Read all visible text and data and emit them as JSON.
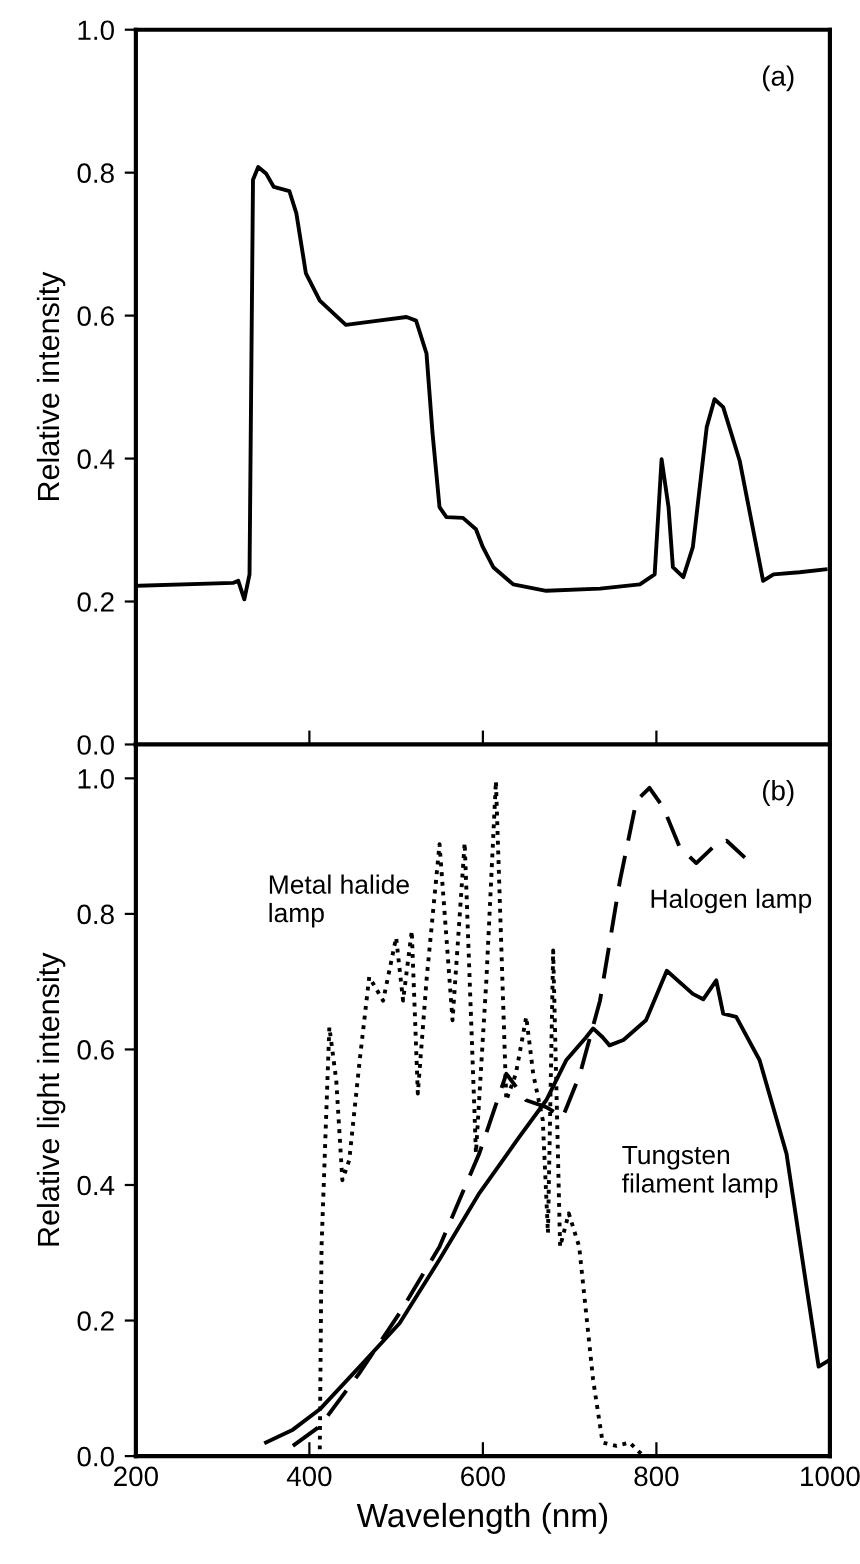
{
  "chart_data": [
    {
      "type": "line",
      "ylabel": "Relative intensity",
      "xlim": [
        200,
        1000
      ],
      "ylim": [
        0,
        1.0
      ],
      "xticks": [
        {
          "value": 400,
          "label": null
        },
        {
          "value": 600,
          "label": null
        },
        {
          "value": 800,
          "label": null
        }
      ],
      "yticks": [
        {
          "value": 0,
          "label": "0.0"
        },
        {
          "value": 0.2,
          "label": "0.2"
        },
        {
          "value": 0.4,
          "label": "0.4"
        },
        {
          "value": 0.6,
          "label": "0.6"
        },
        {
          "value": 0.8,
          "label": "0.8"
        },
        {
          "value": 1.0,
          "label": "1.0"
        }
      ],
      "tick_labels": "y",
      "grid": false,
      "legend": false,
      "annotations": [
        "(a)"
      ],
      "series": [
        {
          "color": "#000000",
          "line_style": "solid",
          "x": [
            204,
            312,
            318,
            325,
            331,
            335,
            341,
            350,
            359,
            377,
            385,
            396,
            412,
            442,
            473,
            512,
            523,
            535,
            542,
            550,
            558,
            577,
            592,
            600,
            612,
            635,
            673,
            735,
            781,
            798,
            806,
            814,
            819,
            831,
            842,
            858,
            867,
            877,
            896,
            923,
            935,
            965,
            995
          ],
          "values": [
            0.222,
            0.226,
            0.229,
            0.203,
            0.238,
            0.79,
            0.808,
            0.799,
            0.78,
            0.774,
            0.743,
            0.659,
            0.621,
            0.587,
            0.592,
            0.598,
            0.593,
            0.547,
            0.435,
            0.332,
            0.318,
            0.317,
            0.301,
            0.276,
            0.248,
            0.224,
            0.215,
            0.218,
            0.224,
            0.238,
            0.399,
            0.332,
            0.248,
            0.234,
            0.276,
            0.444,
            0.483,
            0.472,
            0.397,
            0.229,
            0.238,
            0.241,
            0.245
          ]
        }
      ]
    },
    {
      "type": "line",
      "xlabel": "Wavelength (nm)",
      "ylabel": "Relative light intensity",
      "xlim": [
        200,
        1000
      ],
      "ylim": [
        0,
        1.05
      ],
      "xticks": [
        200,
        400,
        600,
        800,
        1000
      ],
      "yticks": [
        {
          "value": 0,
          "label": "0.0"
        },
        {
          "value": 0.2,
          "label": "0.2"
        },
        {
          "value": 0.4,
          "label": "0.4"
        },
        {
          "value": 0.6,
          "label": "0.6"
        },
        {
          "value": 0.8,
          "label": "0.8"
        },
        {
          "value": 1.0,
          "label": "1.0"
        }
      ],
      "grid": false,
      "legend": false,
      "annotations": [
        "(b)"
      ],
      "series": [
        {
          "name": "Tungsten\nfilament lamp",
          "color": "#000000",
          "line_style": "solid",
          "x": [
            350,
            381,
            412,
            458,
            504,
            550,
            596,
            642,
            673,
            696,
            719,
            727,
            738,
            746,
            762,
            788,
            812,
            842,
            854,
            869,
            877,
            892,
            919,
            950,
            973,
            987,
            1000
          ],
          "values": [
            0.02,
            0.039,
            0.069,
            0.132,
            0.196,
            0.29,
            0.388,
            0.471,
            0.525,
            0.584,
            0.618,
            0.631,
            0.618,
            0.606,
            0.614,
            0.643,
            0.716,
            0.682,
            0.674,
            0.702,
            0.653,
            0.648,
            0.584,
            0.446,
            0.25,
            0.132,
            0.142
          ]
        },
        {
          "name": "Halogen lamp",
          "color": "#000000",
          "line_style": "dashed",
          "x": [
            381,
            412,
            458,
            504,
            550,
            596,
            627,
            650,
            673,
            692,
            712,
            735,
            758,
            777,
            792,
            808,
            827,
            846,
            865,
            881,
            902
          ],
          "values": [
            0.015,
            0.044,
            0.123,
            0.211,
            0.309,
            0.447,
            0.564,
            0.525,
            0.515,
            0.5,
            0.564,
            0.672,
            0.849,
            0.967,
            0.986,
            0.957,
            0.898,
            0.875,
            0.898,
            0.908,
            0.883
          ]
        },
        {
          "name": "Metal halide\nlamp",
          "color": "#000000",
          "line_style": "dotted",
          "x": [
            412,
            414,
            423,
            431,
            438,
            446,
            458,
            469,
            485,
            500,
            508,
            518,
            525,
            535,
            550,
            565,
            579,
            592,
            604,
            615,
            627,
            638,
            650,
            658,
            669,
            675,
            681,
            689,
            699,
            711,
            727,
            738,
            754,
            769,
            781,
            785
          ],
          "values": [
            0.01,
            0.309,
            0.633,
            0.554,
            0.407,
            0.437,
            0.584,
            0.707,
            0.672,
            0.765,
            0.672,
            0.775,
            0.535,
            0.702,
            0.903,
            0.643,
            0.905,
            0.447,
            0.702,
            0.996,
            0.525,
            0.564,
            0.648,
            0.564,
            0.496,
            0.329,
            0.746,
            0.309,
            0.358,
            0.309,
            0.113,
            0.02,
            0.015,
            0.02,
            0.005,
            0.0
          ]
        }
      ]
    }
  ]
}
